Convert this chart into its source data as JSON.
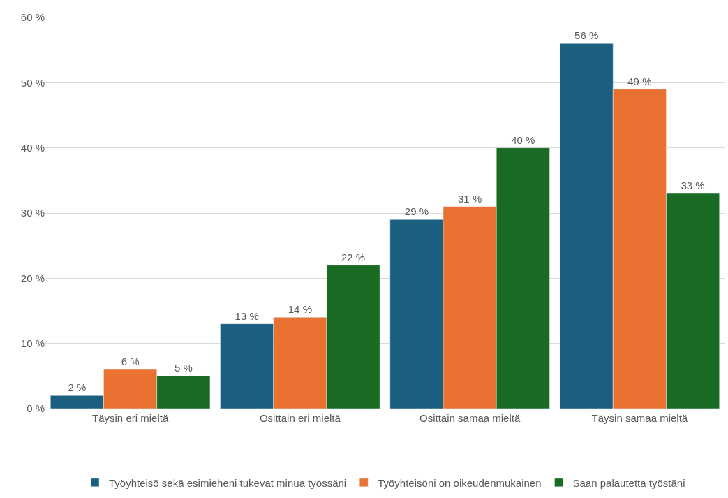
{
  "chart_data": {
    "type": "bar",
    "categories": [
      "Täysin eri mieltä",
      "Osittain eri mieltä",
      "Osittain samaa mieltä",
      "Täysin samaa mieltä"
    ],
    "series": [
      {
        "name": "Työyhteisö sekä esimieheni tukevat minua työssäni",
        "color": "#1a5e80",
        "values": [
          2,
          13,
          29,
          56
        ],
        "value_labels": [
          "2 %",
          "13 %",
          "29 %",
          "56 %"
        ]
      },
      {
        "name": "Työyhteisöni on oikeudenmukainen",
        "color": "#e97132",
        "values": [
          6,
          14,
          31,
          49
        ],
        "value_labels": [
          "6 %",
          "14 %",
          "31 %",
          "49 %"
        ]
      },
      {
        "name": "Saan palautetta työstäni",
        "color": "#196b24",
        "values": [
          5,
          22,
          40,
          33
        ],
        "value_labels": [
          "5 %",
          "22 %",
          "40 %",
          "33 %"
        ]
      }
    ],
    "ylim": [
      0,
      60
    ],
    "yticks": [
      {
        "value": 0,
        "label": "0 %"
      },
      {
        "value": 10,
        "label": "10 %"
      },
      {
        "value": 20,
        "label": "20 %"
      },
      {
        "value": 30,
        "label": "30 %"
      },
      {
        "value": 40,
        "label": "40 %"
      },
      {
        "value": 50,
        "label": "50 %"
      },
      {
        "value": 60,
        "label": "60 %"
      }
    ],
    "grid": "y",
    "legend": "bottom"
  }
}
